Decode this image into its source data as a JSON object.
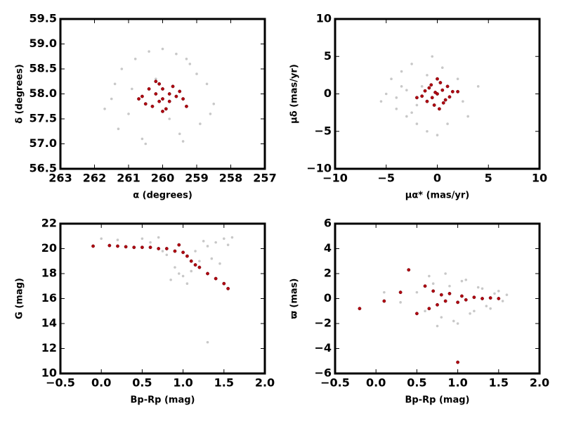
{
  "chart_data": [
    {
      "type": "scatter",
      "xlabel": "α (degrees)",
      "ylabel": "δ (degrees)",
      "xlim": [
        263,
        257
      ],
      "xticks": [
        263,
        262,
        261,
        260,
        259,
        258,
        257
      ],
      "ylim": [
        56.5,
        59.5
      ],
      "yticks": [
        56.5,
        {
          "value": 57,
          "label": "57.0"
        },
        57.5,
        {
          "value": 58,
          "label": "58.0"
        },
        58.5,
        {
          "value": 59,
          "label": "59.0"
        },
        59.5
      ],
      "series": [
        {
          "color": "#c8c8c8",
          "x": [
            261.5,
            261.2,
            260.8,
            260.4,
            260,
            259.6,
            259.2,
            258.7,
            258.5,
            261.7,
            261.3,
            260.6,
            259.4,
            258.9,
            261,
            260.2,
            259.8,
            259,
            260.9,
            259.5,
            261.4,
            258.6,
            260.5,
            259.3
          ],
          "values": [
            57.9,
            58.5,
            58.7,
            58.85,
            58.9,
            58.8,
            58.6,
            58.2,
            57.8,
            57.7,
            57.3,
            57.1,
            57.05,
            57.4,
            57.6,
            58.3,
            57.5,
            58.4,
            58.1,
            57.2,
            58.2,
            57.6,
            57.0,
            58.7
          ]
        },
        {
          "color": "#b00010",
          "x": [
            260,
            260.2,
            259.8,
            260.4,
            259.6,
            260.5,
            259.5,
            260.1,
            259.9,
            260.3,
            259.7,
            260.6,
            259.4,
            260,
            260.2,
            259.8,
            260.7,
            259.3,
            260,
            260.1
          ],
          "values": [
            57.9,
            58.0,
            57.85,
            58.1,
            57.95,
            57.8,
            58.05,
            58.2,
            57.7,
            57.75,
            58.15,
            57.95,
            57.9,
            57.65,
            58.25,
            58.0,
            57.9,
            57.75,
            58.1,
            57.85
          ]
        }
      ]
    },
    {
      "type": "scatter",
      "xlabel": "μα* (mas/yr)",
      "ylabel": "μδ (mas/yr)",
      "xlim": [
        -10,
        10
      ],
      "xticks": [
        {
          "value": -10,
          "label": "−10"
        },
        {
          "value": -5,
          "label": "−5"
        },
        0,
        5,
        10
      ],
      "ylim": [
        -10,
        10
      ],
      "yticks": [
        {
          "value": -10,
          "label": "−10"
        },
        {
          "value": -5,
          "label": "−5"
        },
        0,
        5,
        10
      ],
      "series": [
        {
          "color": "#c8c8c8",
          "x": [
            -5,
            -4.5,
            -4,
            -3.5,
            -3,
            -2.5,
            -2,
            -1.5,
            -1,
            -0.5,
            0,
            1,
            2,
            3,
            4,
            -5.5,
            -3,
            -2,
            -1,
            -4,
            -3.5,
            -2.5,
            0.5,
            2.5
          ],
          "values": [
            0,
            2,
            -2,
            3,
            -3,
            4,
            -4,
            1,
            -5,
            5,
            -5.5,
            -4,
            2,
            -3,
            1,
            -1,
            0.5,
            -1.5,
            2.5,
            -0.5,
            1,
            -2.5,
            3.5,
            -1
          ]
        },
        {
          "color": "#b00010",
          "x": [
            0,
            0.5,
            -0.5,
            1,
            -1,
            1.5,
            -1.5,
            0.3,
            -0.3,
            0.8,
            -0.8,
            0,
            0.2,
            -0.2,
            1.2,
            -1.2,
            0.6,
            -0.6,
            -2,
            2
          ],
          "values": [
            0,
            0.5,
            -0.5,
            1,
            -1,
            0.3,
            -0.3,
            1.5,
            -1.5,
            -0.8,
            0.8,
            2,
            -2,
            0.2,
            -0.4,
            0.4,
            -1.2,
            1.2,
            -0.5,
            0.3
          ]
        }
      ]
    },
    {
      "type": "scatter",
      "xlabel": "Bp-Rp (mag)",
      "ylabel": "G (mag)",
      "xlim": [
        -0.5,
        2.0
      ],
      "xticks": [
        {
          "value": -0.5,
          "label": "−0.5"
        },
        {
          "value": 0,
          "label": "0.0"
        },
        0.5,
        {
          "value": 1,
          "label": "1.0"
        },
        1.5,
        {
          "value": 2,
          "label": "2.0"
        }
      ],
      "ylim": [
        10,
        22
      ],
      "yticks": [
        10,
        12,
        14,
        16,
        18,
        20,
        22
      ],
      "series": [
        {
          "color": "#c8c8c8",
          "x": [
            0.5,
            0.6,
            0.7,
            0.8,
            0.9,
            1.0,
            1.1,
            1.2,
            1.3,
            1.4,
            1.5,
            1.6,
            0.85,
            0.95,
            1.05,
            1.15,
            1.25,
            1.35,
            1.45,
            1.55,
            0.75,
            0.2,
            0.0,
            1.3
          ],
          "values": [
            20.8,
            20.5,
            20.9,
            19.5,
            18.5,
            17.8,
            18.2,
            19.0,
            20.2,
            20.5,
            20.8,
            20.9,
            17.5,
            18.0,
            17.2,
            19.8,
            20.6,
            19.2,
            18.8,
            20.3,
            19.8,
            20.7,
            20.8,
            12.5
          ]
        },
        {
          "color": "#b00010",
          "x": [
            -0.1,
            0.1,
            0.2,
            0.3,
            0.4,
            0.5,
            0.6,
            0.7,
            0.8,
            0.9,
            1.0,
            1.05,
            1.1,
            1.15,
            1.2,
            1.3,
            1.4,
            1.5,
            1.55,
            0.95
          ],
          "values": [
            20.2,
            20.25,
            20.2,
            20.15,
            20.1,
            20.1,
            20.1,
            20.0,
            20.0,
            19.8,
            19.7,
            19.4,
            19.0,
            18.7,
            18.5,
            18.0,
            17.6,
            17.2,
            16.8,
            20.3
          ]
        }
      ]
    },
    {
      "type": "scatter",
      "xlabel": "Bp-Rp (mag)",
      "ylabel": "ϖ (mas)",
      "xlim": [
        -0.5,
        2.0
      ],
      "xticks": [
        {
          "value": -0.5,
          "label": "−0.5"
        },
        {
          "value": 0,
          "label": "0.0"
        },
        0.5,
        {
          "value": 1,
          "label": "1.0"
        },
        1.5,
        {
          "value": 2,
          "label": "2.0"
        }
      ],
      "ylim": [
        -6,
        6
      ],
      "yticks": [
        {
          "value": -6,
          "label": "−6"
        },
        {
          "value": -4,
          "label": "−4"
        },
        {
          "value": -2,
          "label": "−2"
        },
        0,
        2,
        4,
        6
      ],
      "series": [
        {
          "color": "#c8c8c8",
          "x": [
            0.5,
            0.6,
            0.7,
            0.8,
            0.9,
            1.0,
            1.1,
            1.2,
            1.3,
            1.4,
            1.5,
            1.6,
            0.75,
            0.85,
            0.95,
            1.05,
            1.15,
            1.25,
            1.35,
            1.45,
            0.3,
            0.1,
            0.65,
            1.55
          ],
          "values": [
            0.5,
            -1,
            1.2,
            -1.5,
            1,
            -2,
            1.5,
            -1,
            0.8,
            -0.8,
            0.6,
            0.3,
            -2.2,
            2,
            -1.8,
            1.4,
            -1.2,
            0.9,
            -0.6,
            0.4,
            -0.3,
            0.5,
            1.8,
            -0.2
          ]
        },
        {
          "color": "#b00010",
          "x": [
            -0.2,
            0.1,
            0.3,
            0.5,
            0.6,
            0.65,
            0.7,
            0.75,
            0.8,
            0.85,
            0.9,
            1.0,
            1.05,
            1.1,
            1.2,
            1.3,
            1.4,
            1.5,
            1.0,
            0.4
          ],
          "values": [
            -0.8,
            -0.2,
            0.5,
            -1.2,
            1.0,
            -0.8,
            0.6,
            -0.5,
            0.3,
            -0.2,
            0.4,
            -0.3,
            0.2,
            -0.1,
            0.1,
            0.0,
            0.05,
            0.0,
            -5.1,
            2.3
          ]
        }
      ]
    }
  ]
}
